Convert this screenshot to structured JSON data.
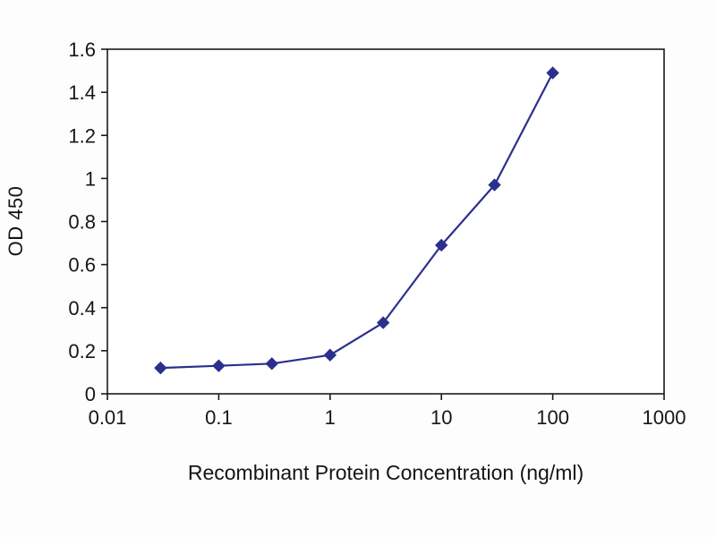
{
  "figure": {
    "background_color": "#fdfdfd",
    "line_color": "#2b2f8e",
    "axis_color": "#1a1a1a"
  },
  "chart_data": {
    "type": "line",
    "title": "",
    "xlabel": "Recombinant Protein Concentration (ng/ml)",
    "ylabel": "OD 450",
    "x_scale": "log",
    "xlim": [
      0.01,
      1000
    ],
    "ylim": [
      0,
      1.6
    ],
    "xticks": [
      0.01,
      0.1,
      1,
      10,
      100,
      1000
    ],
    "xtick_labels": [
      "0.01",
      "0.1",
      "1",
      "10",
      "100",
      "1000"
    ],
    "yticks": [
      0,
      0.2,
      0.4,
      0.6,
      0.8,
      1,
      1.2,
      1.4,
      1.6
    ],
    "ytick_labels": [
      "0",
      "0.2",
      "0.4",
      "0.6",
      "0.8",
      "1",
      "1.2",
      "1.4",
      "1.6"
    ],
    "grid": false,
    "legend_position": "none",
    "series": [
      {
        "name": "OD 450",
        "marker": "diamond",
        "color": "#2b2f8e",
        "x": [
          0.03,
          0.1,
          0.3,
          1,
          3,
          10,
          30,
          100
        ],
        "y": [
          0.12,
          0.13,
          0.14,
          0.18,
          0.33,
          0.69,
          0.97,
          1.49
        ]
      }
    ]
  }
}
